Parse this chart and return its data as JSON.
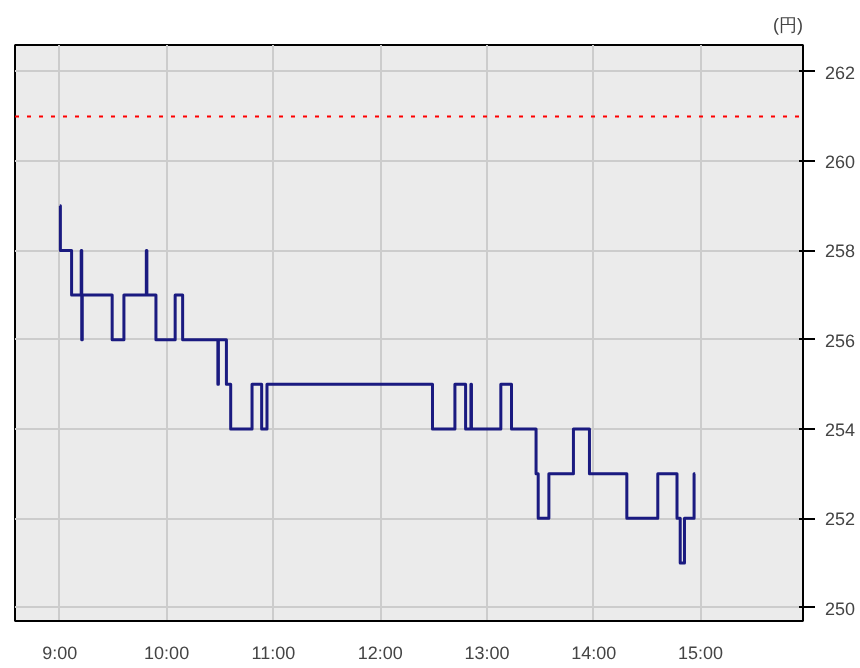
{
  "chart_data": {
    "type": "step",
    "ylabel": "(円)",
    "x": [
      9.0,
      9.005,
      9.11,
      9.2,
      9.205,
      9.21,
      9.49,
      9.6,
      9.81,
      9.815,
      9.9,
      10.08,
      10.15,
      10.48,
      10.485,
      10.56,
      10.6,
      10.8,
      10.89,
      10.94,
      12.49,
      12.7,
      12.8,
      12.85,
      12.855,
      13.13,
      13.23,
      13.46,
      13.48,
      13.58,
      13.81,
      13.96,
      14.31,
      14.6,
      14.78,
      14.81,
      14.85,
      14.94,
      14.95
    ],
    "series": [
      {
        "color": "#1a1a80",
        "values": [
          259,
          258,
          257,
          258,
          256,
          257,
          256,
          257,
          258,
          257,
          256,
          257,
          256,
          255,
          256,
          255,
          254,
          255,
          254,
          255,
          254,
          255,
          254,
          255,
          254,
          255,
          254,
          253,
          252,
          253,
          254,
          253,
          252,
          253,
          252,
          251,
          252,
          253,
          253
        ]
      }
    ],
    "xlim": [
      8.58,
      15.96
    ],
    "xticks": [
      {
        "value": 9,
        "label": "9:00"
      },
      {
        "value": 10,
        "label": "10:00"
      },
      {
        "value": 11,
        "label": "11:00"
      },
      {
        "value": 12,
        "label": "12:00"
      },
      {
        "value": 13,
        "label": "13:00"
      },
      {
        "value": 14,
        "label": "14:00"
      },
      {
        "value": 15,
        "label": "15:00"
      }
    ],
    "ylim": [
      249.7,
      262.6
    ],
    "yticks": [
      250,
      252,
      254,
      256,
      258,
      260,
      262
    ],
    "grid": true,
    "ref_lines": [
      {
        "axis": "y",
        "value": 261,
        "color": "#ff0000",
        "line_style": "dotted"
      }
    ]
  }
}
